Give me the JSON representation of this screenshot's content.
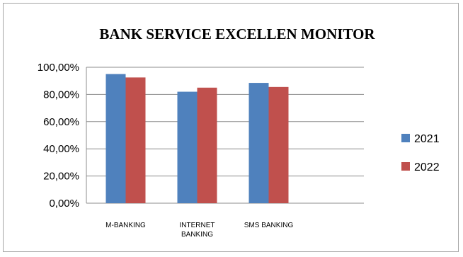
{
  "chart_data": {
    "type": "bar",
    "title": "BANK SERVICE EXCELLEN MONITOR",
    "xlabel": "",
    "ylabel": "",
    "categories": [
      [
        "M-BANKING"
      ],
      [
        "INTERNET",
        "BANKING"
      ],
      [
        "SMS BANKING"
      ]
    ],
    "series": [
      {
        "name": "2021",
        "color": "#4f81bd",
        "values": [
          0.95,
          0.82,
          0.885
        ]
      },
      {
        "name": "2022",
        "color": "#c0504d",
        "values": [
          0.925,
          0.85,
          0.855
        ]
      }
    ],
    "ylim": [
      0,
      1
    ],
    "yticks": [
      0,
      0.2,
      0.4,
      0.6,
      0.8,
      1.0
    ],
    "ytick_labels": [
      "0,00%",
      "20,00%",
      "40,00%",
      "60,00%",
      "80,00%",
      "100,00%"
    ],
    "grid": true,
    "legend_position": "right"
  }
}
